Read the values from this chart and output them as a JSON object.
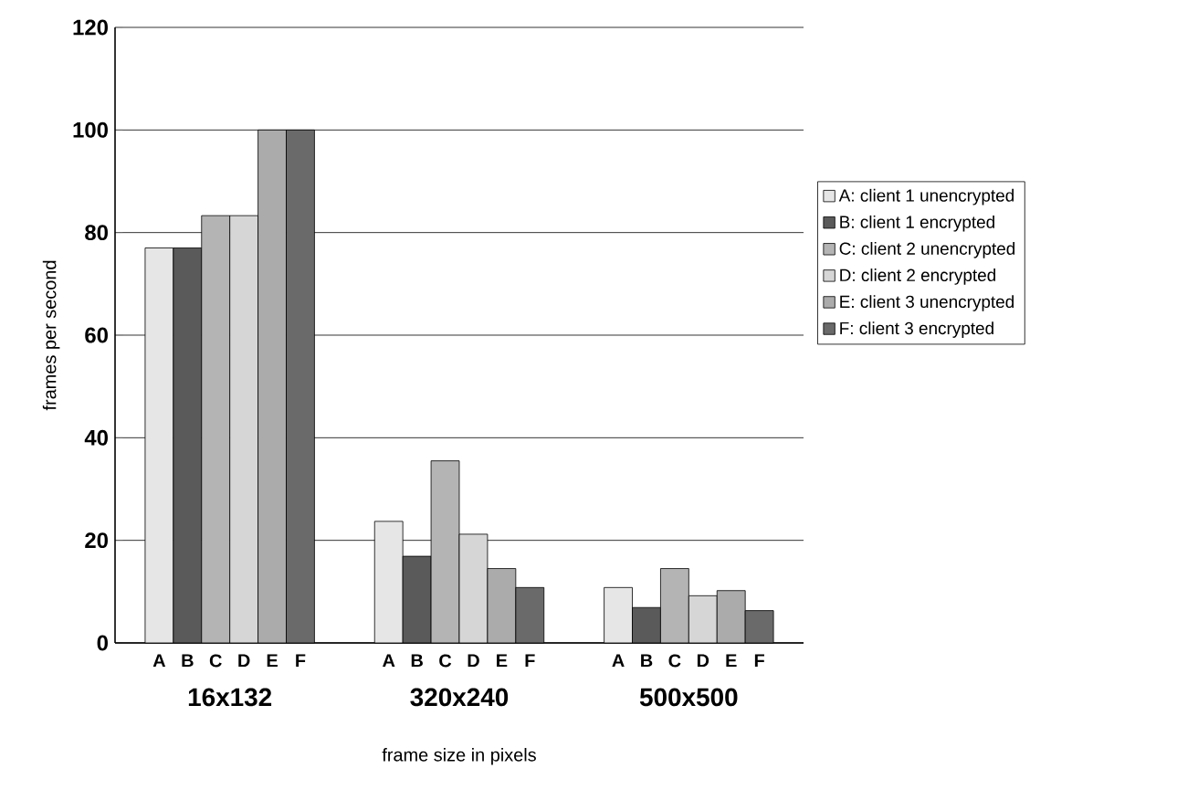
{
  "chart_data": {
    "type": "bar",
    "xlabel": "frame size in pixels",
    "ylabel": "frames per second",
    "categories": [
      "16x132",
      "320x240",
      "500x500"
    ],
    "series": [
      {
        "name": "A: client 1 unencrypted",
        "color": "#e6e6e6",
        "values": [
          77,
          23.7,
          10.8
        ]
      },
      {
        "name": "B: client 1 encrypted",
        "color": "#5a5a5a",
        "values": [
          77,
          16.9,
          6.9
        ]
      },
      {
        "name": "C: client 2 unencrypted",
        "color": "#b4b4b4",
        "values": [
          83.3,
          35.5,
          14.5
        ]
      },
      {
        "name": "D: client 2 encrypted",
        "color": "#d6d6d6",
        "values": [
          83.3,
          21.2,
          9.2
        ]
      },
      {
        "name": "E: client 3 unencrypted",
        "color": "#ababab",
        "values": [
          100,
          14.5,
          10.2
        ]
      },
      {
        "name": "F: client 3 encrypted",
        "color": "#6a6a6a",
        "values": [
          100,
          10.8,
          6.3
        ]
      }
    ],
    "ylim": [
      0,
      120
    ],
    "yticks": [
      0,
      20,
      40,
      60,
      80,
      100,
      120
    ],
    "grid": "y",
    "legend": "right",
    "annotations": [
      "A",
      "B",
      "C",
      "D",
      "E",
      "F",
      "A",
      "B",
      "C",
      "D",
      "E",
      "F",
      "A",
      "B",
      "C",
      "D",
      "E",
      "F"
    ]
  }
}
